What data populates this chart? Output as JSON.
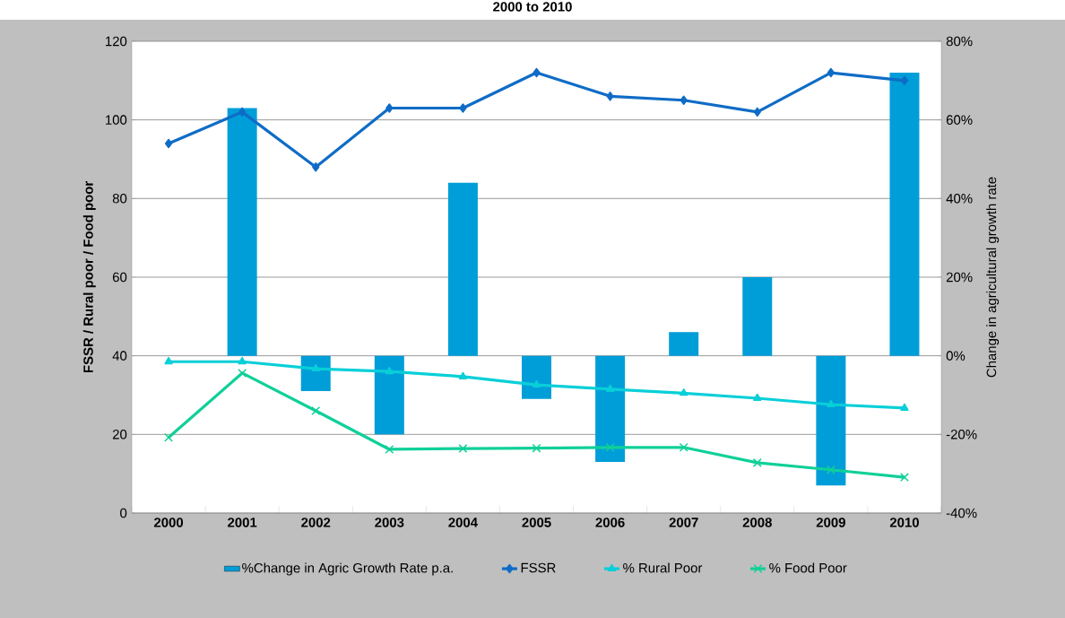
{
  "chart_data": {
    "type": "line",
    "title": "2000 to 2010",
    "ylabel": "FSSR / Rural poor / Food poor",
    "y2label": "Change in agricultural growth rate",
    "categories": [
      "2000",
      "2001",
      "2002",
      "2003",
      "2004",
      "2005",
      "2006",
      "2007",
      "2008",
      "2009",
      "2010"
    ],
    "series": [
      {
        "name": "%Change in Agric Growth Rate p.a.",
        "type": "bar",
        "axis": "y2",
        "color": "#009ed8",
        "values": [
          0,
          63,
          -9,
          -20,
          44,
          -11,
          -27,
          6,
          20,
          -33,
          72
        ]
      },
      {
        "name": "FSSR",
        "type": "line",
        "marker": "diamond",
        "color": "#0f6cc6",
        "values": [
          94,
          102,
          88,
          103,
          103,
          112,
          106,
          105,
          102,
          112,
          110
        ]
      },
      {
        "name": "% Rural Poor",
        "type": "line",
        "marker": "triangle",
        "color": "#08cfd8",
        "values": [
          38.5,
          38.5,
          36.7,
          36,
          34.7,
          32.6,
          31.5,
          30.5,
          29.2,
          27.6,
          26.7
        ]
      },
      {
        "name": "% Food Poor",
        "type": "line",
        "marker": "cross",
        "color": "#10d098",
        "values": [
          19.2,
          35.6,
          26,
          16.2,
          16.4,
          16.5,
          16.7,
          16.7,
          12.8,
          11,
          9.1
        ]
      }
    ],
    "ylim": [
      0,
      120
    ],
    "yticks": [
      0,
      20,
      40,
      60,
      80,
      100,
      120
    ],
    "y2lim": [
      -40,
      80
    ],
    "y2ticks": [
      {
        "value": -40,
        "label": "-40%"
      },
      {
        "value": -20,
        "label": "-20%"
      },
      {
        "value": 0,
        "label": "0%"
      },
      {
        "value": 20,
        "label": "20%"
      },
      {
        "value": 40,
        "label": "40%"
      },
      {
        "value": 60,
        "label": "60%"
      },
      {
        "value": 80,
        "label": "80%"
      }
    ],
    "grid": "y",
    "legend": "bottom"
  }
}
